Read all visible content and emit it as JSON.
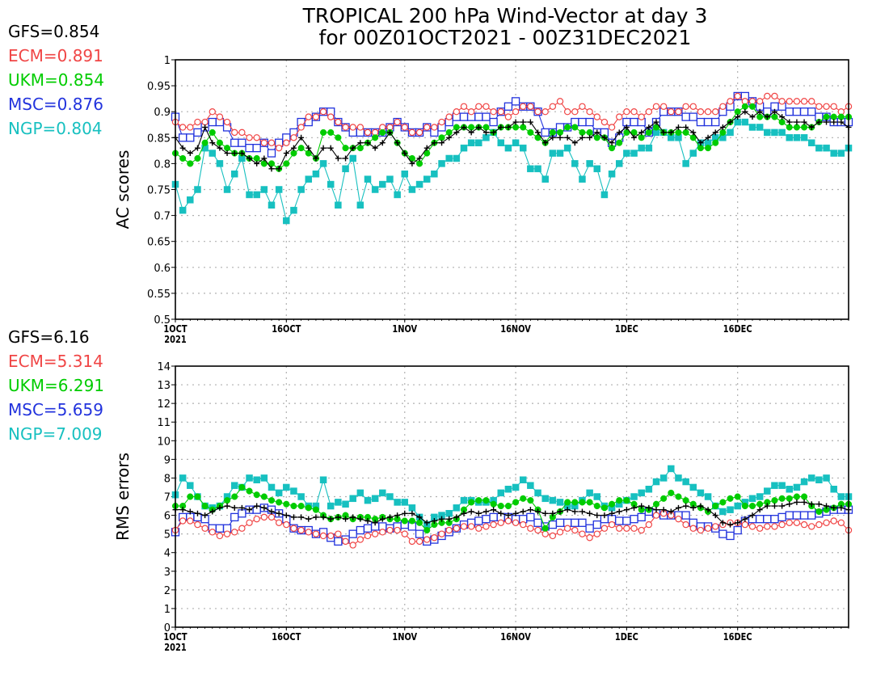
{
  "title": {
    "line1": "TROPICAL 200 hPa Wind-Vector at day 3",
    "line2": "for 00Z01OCT2021 - 00Z31DEC2021"
  },
  "colors": {
    "GFS": "#000000",
    "ECM": "#f04545",
    "UKM": "#00cc00",
    "MSC": "#2233dd",
    "NGP": "#17c0c0"
  },
  "legend_top": [
    {
      "model": "GFS",
      "text": "GFS=0.854"
    },
    {
      "model": "ECM",
      "text": "ECM=0.891"
    },
    {
      "model": "UKM",
      "text": "UKM=0.854"
    },
    {
      "model": "MSC",
      "text": "MSC=0.876"
    },
    {
      "model": "NGP",
      "text": "NGP=0.804"
    }
  ],
  "legend_bottom": [
    {
      "model": "GFS",
      "text": "GFS=6.16"
    },
    {
      "model": "ECM",
      "text": "ECM=5.314"
    },
    {
      "model": "UKM",
      "text": "UKM=6.291"
    },
    {
      "model": "MSC",
      "text": "MSC=5.659"
    },
    {
      "model": "NGP",
      "text": "NGP=7.009"
    }
  ],
  "chart_data": [
    {
      "type": "line",
      "ylabel": "AC scores",
      "ylim": [
        0.5,
        1.0
      ],
      "yticks": [
        "0.5",
        "0.55",
        "0.6",
        "0.65",
        "0.7",
        "0.75",
        "0.8",
        "0.85",
        "0.9",
        "0.95",
        "1"
      ],
      "xlim": [
        1,
        92
      ],
      "xticks": [
        {
          "x": 1,
          "label": "1OCT",
          "sub": "2021"
        },
        {
          "x": 16,
          "label": "16OCT"
        },
        {
          "x": 32,
          "label": "1NOV"
        },
        {
          "x": 47,
          "label": "16NOV"
        },
        {
          "x": 62,
          "label": "1DEC"
        },
        {
          "x": 77,
          "label": "16DEC"
        }
      ],
      "grid": true,
      "x_start": 1,
      "series": [
        {
          "name": "GFS",
          "marker": "plus",
          "values": [
            0.85,
            0.83,
            0.82,
            0.83,
            0.87,
            0.84,
            0.83,
            0.82,
            0.82,
            0.82,
            0.81,
            0.8,
            0.81,
            0.79,
            0.79,
            0.82,
            0.83,
            0.85,
            0.83,
            0.81,
            0.83,
            0.83,
            0.81,
            0.81,
            0.83,
            0.84,
            0.84,
            0.83,
            0.84,
            0.86,
            0.84,
            0.82,
            0.8,
            0.81,
            0.83,
            0.84,
            0.84,
            0.85,
            0.86,
            0.87,
            0.86,
            0.87,
            0.86,
            0.86,
            0.87,
            0.87,
            0.88,
            0.88,
            0.88,
            0.86,
            0.84,
            0.85,
            0.85,
            0.85,
            0.84,
            0.85,
            0.85,
            0.86,
            0.85,
            0.84,
            0.86,
            0.87,
            0.85,
            0.86,
            0.87,
            0.88,
            0.86,
            0.86,
            0.87,
            0.87,
            0.86,
            0.84,
            0.85,
            0.86,
            0.87,
            0.88,
            0.89,
            0.9,
            0.89,
            0.9,
            0.89,
            0.9,
            0.89,
            0.88,
            0.88,
            0.88,
            0.87,
            0.88,
            0.88,
            0.88,
            0.88,
            0.87
          ]
        },
        {
          "name": "ECM",
          "marker": "circle",
          "values": [
            0.88,
            0.87,
            0.87,
            0.88,
            0.88,
            0.9,
            0.89,
            0.88,
            0.86,
            0.86,
            0.85,
            0.85,
            0.84,
            0.84,
            0.83,
            0.84,
            0.85,
            0.87,
            0.89,
            0.89,
            0.9,
            0.89,
            0.88,
            0.87,
            0.87,
            0.87,
            0.86,
            0.86,
            0.87,
            0.87,
            0.88,
            0.87,
            0.86,
            0.86,
            0.87,
            0.87,
            0.88,
            0.89,
            0.9,
            0.91,
            0.9,
            0.91,
            0.91,
            0.9,
            0.9,
            0.89,
            0.9,
            0.91,
            0.91,
            0.9,
            0.9,
            0.91,
            0.92,
            0.9,
            0.9,
            0.91,
            0.9,
            0.89,
            0.88,
            0.87,
            0.89,
            0.9,
            0.9,
            0.89,
            0.9,
            0.91,
            0.91,
            0.9,
            0.9,
            0.91,
            0.91,
            0.9,
            0.9,
            0.9,
            0.91,
            0.92,
            0.93,
            0.92,
            0.92,
            0.92,
            0.93,
            0.93,
            0.92,
            0.92,
            0.92,
            0.92,
            0.92,
            0.91,
            0.91,
            0.91,
            0.9,
            0.91
          ]
        },
        {
          "name": "UKM",
          "marker": "dot",
          "values": [
            0.82,
            0.81,
            0.8,
            0.81,
            0.84,
            0.86,
            0.84,
            0.83,
            0.82,
            0.82,
            0.81,
            0.81,
            0.8,
            0.8,
            0.79,
            0.8,
            0.82,
            0.83,
            0.82,
            0.81,
            0.86,
            0.86,
            0.85,
            0.83,
            0.83,
            0.83,
            0.84,
            0.85,
            0.86,
            0.86,
            0.84,
            0.82,
            0.81,
            0.8,
            0.82,
            0.84,
            0.85,
            0.86,
            0.87,
            0.87,
            0.87,
            0.87,
            0.87,
            0.86,
            0.87,
            0.87,
            0.87,
            0.87,
            0.86,
            0.85,
            0.84,
            0.86,
            0.86,
            0.87,
            0.87,
            0.86,
            0.86,
            0.85,
            0.85,
            0.83,
            0.84,
            0.86,
            0.86,
            0.85,
            0.86,
            0.87,
            0.86,
            0.86,
            0.86,
            0.86,
            0.85,
            0.83,
            0.83,
            0.84,
            0.86,
            0.88,
            0.9,
            0.91,
            0.91,
            0.89,
            0.89,
            0.89,
            0.88,
            0.87,
            0.87,
            0.87,
            0.87,
            0.88,
            0.89,
            0.89,
            0.89,
            0.89
          ]
        },
        {
          "name": "MSC",
          "marker": "square",
          "values": [
            0.89,
            0.85,
            0.85,
            0.86,
            0.87,
            0.88,
            0.88,
            0.87,
            0.84,
            0.84,
            0.83,
            0.83,
            0.84,
            0.82,
            0.84,
            0.85,
            0.86,
            0.88,
            0.88,
            0.89,
            0.9,
            0.9,
            0.88,
            0.87,
            0.86,
            0.86,
            0.86,
            0.86,
            0.86,
            0.87,
            0.88,
            0.87,
            0.86,
            0.86,
            0.87,
            0.86,
            0.87,
            0.88,
            0.89,
            0.89,
            0.89,
            0.89,
            0.89,
            0.88,
            0.9,
            0.91,
            0.92,
            0.91,
            0.91,
            0.9,
            0.86,
            0.86,
            0.87,
            0.87,
            0.88,
            0.88,
            0.88,
            0.86,
            0.86,
            0.84,
            0.85,
            0.88,
            0.88,
            0.88,
            0.86,
            0.88,
            0.9,
            0.9,
            0.9,
            0.89,
            0.89,
            0.88,
            0.88,
            0.88,
            0.9,
            0.91,
            0.93,
            0.93,
            0.92,
            0.91,
            0.9,
            0.91,
            0.91,
            0.9,
            0.9,
            0.9,
            0.9,
            0.89,
            0.89,
            0.88,
            0.88,
            0.88
          ]
        },
        {
          "name": "NGP",
          "marker": "filled-square",
          "values": [
            0.76,
            0.71,
            0.73,
            0.75,
            0.83,
            0.82,
            0.8,
            0.75,
            0.78,
            0.81,
            0.74,
            0.74,
            0.75,
            0.72,
            0.75,
            0.69,
            0.71,
            0.75,
            0.77,
            0.78,
            0.8,
            0.76,
            0.72,
            0.79,
            0.81,
            0.72,
            0.77,
            0.75,
            0.76,
            0.77,
            0.74,
            0.78,
            0.75,
            0.76,
            0.77,
            0.78,
            0.8,
            0.81,
            0.81,
            0.83,
            0.84,
            0.84,
            0.85,
            0.86,
            0.84,
            0.83,
            0.84,
            0.83,
            0.79,
            0.79,
            0.77,
            0.82,
            0.82,
            0.83,
            0.8,
            0.77,
            0.8,
            0.79,
            0.74,
            0.78,
            0.8,
            0.82,
            0.82,
            0.83,
            0.83,
            0.86,
            0.86,
            0.85,
            0.85,
            0.8,
            0.82,
            0.84,
            0.84,
            0.85,
            0.85,
            0.86,
            0.88,
            0.88,
            0.87,
            0.87,
            0.86,
            0.86,
            0.86,
            0.85,
            0.85,
            0.85,
            0.84,
            0.83,
            0.83,
            0.82,
            0.82,
            0.83
          ]
        }
      ]
    },
    {
      "type": "line",
      "ylabel": "RMS errors",
      "ylim": [
        0,
        14
      ],
      "yticks": [
        "0",
        "1",
        "2",
        "3",
        "4",
        "5",
        "6",
        "7",
        "8",
        "9",
        "10",
        "11",
        "12",
        "13",
        "14"
      ],
      "xlim": [
        1,
        92
      ],
      "xticks": [
        {
          "x": 1,
          "label": "1OCT",
          "sub": "2021"
        },
        {
          "x": 16,
          "label": "16OCT"
        },
        {
          "x": 32,
          "label": "1NOV"
        },
        {
          "x": 47,
          "label": "16NOV"
        },
        {
          "x": 62,
          "label": "1DEC"
        },
        {
          "x": 77,
          "label": "16DEC"
        }
      ],
      "grid": true,
      "x_start": 1,
      "series": [
        {
          "name": "GFS",
          "marker": "plus",
          "values": [
            6.3,
            6.3,
            6.2,
            6.1,
            6.0,
            6.2,
            6.4,
            6.5,
            6.4,
            6.4,
            6.3,
            6.5,
            6.4,
            6.2,
            6.1,
            6.0,
            5.9,
            5.9,
            5.8,
            5.9,
            5.9,
            5.8,
            5.9,
            5.8,
            5.9,
            5.8,
            5.7,
            5.6,
            5.8,
            5.9,
            6.0,
            6.1,
            6.1,
            5.9,
            5.6,
            5.7,
            5.8,
            5.8,
            5.9,
            6.1,
            6.2,
            6.1,
            6.2,
            6.3,
            6.1,
            6.0,
            6.1,
            6.2,
            6.3,
            6.2,
            6.1,
            6.1,
            6.2,
            6.3,
            6.2,
            6.2,
            6.1,
            6.0,
            6.0,
            6.1,
            6.2,
            6.3,
            6.4,
            6.5,
            6.4,
            6.3,
            6.3,
            6.2,
            6.4,
            6.5,
            6.4,
            6.5,
            6.3,
            6.0,
            5.6,
            5.5,
            5.6,
            5.8,
            6.0,
            6.3,
            6.5,
            6.5,
            6.5,
            6.6,
            6.7,
            6.7,
            6.6,
            6.6,
            6.5,
            6.4,
            6.4,
            6.3
          ]
        },
        {
          "name": "ECM",
          "marker": "circle",
          "values": [
            5.2,
            5.7,
            5.7,
            5.5,
            5.3,
            5.1,
            4.9,
            5.0,
            5.1,
            5.3,
            5.6,
            5.8,
            5.9,
            5.9,
            5.6,
            5.5,
            5.3,
            5.2,
            5.1,
            5.0,
            4.9,
            4.9,
            5.0,
            4.6,
            4.4,
            4.7,
            4.9,
            5.0,
            5.1,
            5.2,
            5.2,
            5.0,
            4.6,
            4.6,
            4.7,
            4.8,
            5.0,
            5.2,
            5.3,
            5.4,
            5.4,
            5.3,
            5.4,
            5.5,
            5.6,
            5.7,
            5.6,
            5.5,
            5.3,
            5.2,
            5.0,
            4.9,
            5.1,
            5.3,
            5.2,
            5.0,
            4.8,
            5.0,
            5.3,
            5.5,
            5.3,
            5.3,
            5.3,
            5.2,
            5.5,
            6.0,
            6.1,
            6.0,
            5.8,
            5.5,
            5.3,
            5.2,
            5.3,
            5.4,
            5.5,
            5.6,
            5.6,
            5.5,
            5.4,
            5.3,
            5.4,
            5.4,
            5.5,
            5.6,
            5.6,
            5.5,
            5.4,
            5.5,
            5.6,
            5.7,
            5.6,
            5.2
          ]
        },
        {
          "name": "UKM",
          "marker": "dot",
          "values": [
            6.5,
            6.5,
            7.0,
            7.0,
            6.5,
            6.3,
            6.5,
            6.8,
            7.0,
            7.5,
            7.3,
            7.1,
            7.0,
            6.8,
            6.7,
            6.6,
            6.5,
            6.5,
            6.4,
            6.3,
            6.0,
            5.8,
            5.9,
            6.0,
            5.8,
            5.9,
            5.9,
            5.8,
            5.9,
            5.8,
            5.8,
            5.7,
            5.7,
            5.6,
            5.2,
            5.5,
            5.6,
            5.6,
            5.8,
            6.3,
            6.7,
            6.8,
            6.8,
            6.6,
            6.5,
            6.5,
            6.7,
            6.9,
            6.8,
            6.3,
            5.3,
            5.9,
            6.2,
            6.7,
            6.7,
            6.7,
            6.7,
            6.5,
            6.4,
            6.6,
            6.8,
            6.8,
            6.6,
            6.3,
            6.3,
            6.6,
            6.9,
            7.2,
            7.0,
            6.8,
            6.6,
            6.4,
            6.2,
            6.5,
            6.7,
            6.9,
            7.0,
            6.5,
            6.5,
            6.6,
            6.7,
            6.8,
            6.9,
            6.9,
            7.0,
            7.0,
            6.5,
            6.2,
            6.3,
            6.4,
            6.6,
            6.6
          ]
        },
        {
          "name": "MSC",
          "marker": "square",
          "values": [
            5.1,
            5.9,
            5.9,
            5.9,
            5.8,
            5.3,
            5.3,
            5.3,
            5.9,
            6.1,
            6.3,
            6.3,
            6.4,
            6.3,
            6.1,
            5.8,
            5.3,
            5.2,
            5.2,
            5.0,
            5.1,
            4.8,
            4.6,
            4.7,
            5.0,
            5.2,
            5.3,
            5.4,
            5.4,
            5.3,
            5.4,
            5.5,
            5.4,
            5.0,
            4.6,
            4.7,
            4.9,
            5.1,
            5.3,
            5.5,
            5.6,
            5.7,
            5.8,
            5.9,
            5.9,
            5.9,
            5.8,
            5.8,
            5.9,
            5.6,
            5.4,
            5.5,
            5.6,
            5.6,
            5.6,
            5.6,
            5.3,
            5.5,
            5.8,
            5.8,
            5.7,
            5.7,
            5.8,
            5.9,
            6.2,
            6.1,
            6.0,
            6.0,
            6.0,
            6.0,
            5.6,
            5.4,
            5.4,
            5.3,
            5.0,
            4.9,
            5.2,
            5.7,
            5.8,
            5.8,
            5.8,
            5.8,
            5.9,
            6.0,
            6.0,
            6.0,
            6.0,
            6.1,
            6.2,
            6.3,
            6.3,
            6.3
          ]
        },
        {
          "name": "NGP",
          "marker": "filled-square",
          "values": [
            7.1,
            8.0,
            7.6,
            7.0,
            6.5,
            6.4,
            6.5,
            7.0,
            7.6,
            7.5,
            8.0,
            7.9,
            8.0,
            7.5,
            7.2,
            7.5,
            7.3,
            7.0,
            6.5,
            6.5,
            7.9,
            6.5,
            6.7,
            6.6,
            6.9,
            7.2,
            6.8,
            6.9,
            7.2,
            7.0,
            6.7,
            6.7,
            6.4,
            5.9,
            5.5,
            5.9,
            6.0,
            6.1,
            6.4,
            6.8,
            6.8,
            6.7,
            6.7,
            6.8,
            7.2,
            7.4,
            7.5,
            7.9,
            7.6,
            7.2,
            6.9,
            6.8,
            6.7,
            6.5,
            6.5,
            6.8,
            7.2,
            7.0,
            6.5,
            6.4,
            6.6,
            6.8,
            7.0,
            7.2,
            7.4,
            7.8,
            8.0,
            8.5,
            8.0,
            7.8,
            7.5,
            7.2,
            7.0,
            6.5,
            6.2,
            6.3,
            6.5,
            6.7,
            6.9,
            7.0,
            7.3,
            7.6,
            7.6,
            7.4,
            7.5,
            7.8,
            8.0,
            7.9,
            8.0,
            7.4,
            7.0,
            7.0
          ]
        }
      ]
    }
  ]
}
